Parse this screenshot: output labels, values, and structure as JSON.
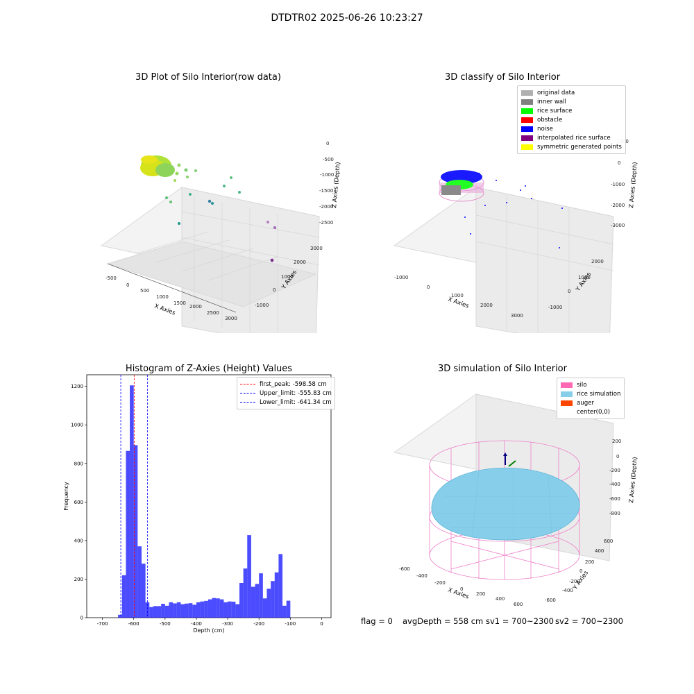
{
  "suptitle": "DTDTR02 2025-06-26 10:23:27",
  "panels": {
    "raw": {
      "title": "3D Plot of Silo Interior(row data)",
      "xlabel": "X Axies",
      "ylabel": "Y Axies",
      "zlabel": "Z Axies (Depth)",
      "x_ticks": [
        "-500",
        "0",
        "500",
        "1000",
        "1500",
        "2000",
        "2500",
        "3000"
      ],
      "y_ticks": [
        "-1000",
        "0",
        "1000",
        "2000",
        "3000"
      ],
      "z_ticks": [
        "0",
        "-500",
        "-1000",
        "-1500",
        "-2000",
        "-2500"
      ]
    },
    "classify": {
      "title": "3D classify of Silo Interior",
      "xlabel": "X Axies",
      "ylabel": "Y Axies",
      "zlabel": "Z Axies (Depth)",
      "x_ticks": [
        "-1000",
        "0",
        "1000",
        "2000",
        "3000"
      ],
      "y_ticks": [
        "-1000",
        "0",
        "1000",
        "2000"
      ],
      "z_ticks": [
        "1000",
        "0",
        "-1000",
        "-2000",
        "-3000"
      ],
      "legend": [
        {
          "label": "original data",
          "color": "#b0b0b0"
        },
        {
          "label": "inner wall",
          "color": "#808080"
        },
        {
          "label": "rice surface",
          "color": "#00ff00"
        },
        {
          "label": "obstacle",
          "color": "#ff0000"
        },
        {
          "label": "noise",
          "color": "#0000ff"
        },
        {
          "label": "interpolated rice surface",
          "color": "#800080"
        },
        {
          "label": "symmetric generated points",
          "color": "#ffff00"
        }
      ]
    },
    "simulation": {
      "title": "3D simulation of Silo Interior",
      "xlabel": "X Axies",
      "ylabel": "Y Axies",
      "zlabel": "Z Axies (Depth)",
      "x_ticks": [
        "-600",
        "-400",
        "-200",
        "0",
        "200",
        "400",
        "600"
      ],
      "y_ticks": [
        "600",
        "400",
        "200",
        "0",
        "-200",
        "-400",
        "-600"
      ],
      "z_ticks": [
        "200",
        "0",
        "-200",
        "-400",
        "-600",
        "-800"
      ],
      "legend": [
        {
          "label": "silo",
          "color": "#ff69b4"
        },
        {
          "label": "rice simulation",
          "color": "#87ceeb"
        },
        {
          "label": "auger",
          "color": "#ff4500"
        },
        {
          "label": "center(0,0)",
          "color": "#ffffff"
        }
      ]
    }
  },
  "chart_data": {
    "type": "bar",
    "title": "Histogram of Z-Axies (Height) Values",
    "xlabel": "Depth (cm)",
    "ylabel": "Frequency",
    "xlim": [
      -750,
      30
    ],
    "ylim": [
      0,
      1260
    ],
    "x_ticks": [
      -700,
      -600,
      -500,
      -400,
      -300,
      -200,
      -100,
      0
    ],
    "y_ticks": [
      0,
      200,
      400,
      600,
      800,
      1000,
      1200
    ],
    "bin_width": 12.5,
    "bin_start": -650,
    "values": [
      15,
      220,
      865,
      1205,
      895,
      370,
      280,
      80,
      55,
      60,
      60,
      72,
      62,
      80,
      74,
      80,
      70,
      73,
      75,
      67,
      80,
      84,
      87,
      95,
      102,
      100,
      95,
      80,
      84,
      83,
      70,
      180,
      255,
      428,
      160,
      175,
      230,
      100,
      150,
      190,
      235,
      330,
      62,
      88
    ],
    "bar_color": "#0000ff",
    "bar_alpha": 0.7,
    "vlines": [
      {
        "label": "first_peak: -598.58 cm",
        "x": -598.58,
        "color": "#ff0000"
      },
      {
        "label": "Upper_limit: -555.83 cm",
        "x": -555.83,
        "color": "#0000ff"
      },
      {
        "label": "Lower_limit: -641.34 cm",
        "x": -641.34,
        "color": "#0000ff"
      }
    ],
    "legend_position": "upper right"
  },
  "footer": {
    "flag": "flag = 0",
    "avg_depth": "avgDepth = 558 cm",
    "sv1": "sv1 = 700~2300",
    "sv2": "sv2 = 700~2300"
  }
}
